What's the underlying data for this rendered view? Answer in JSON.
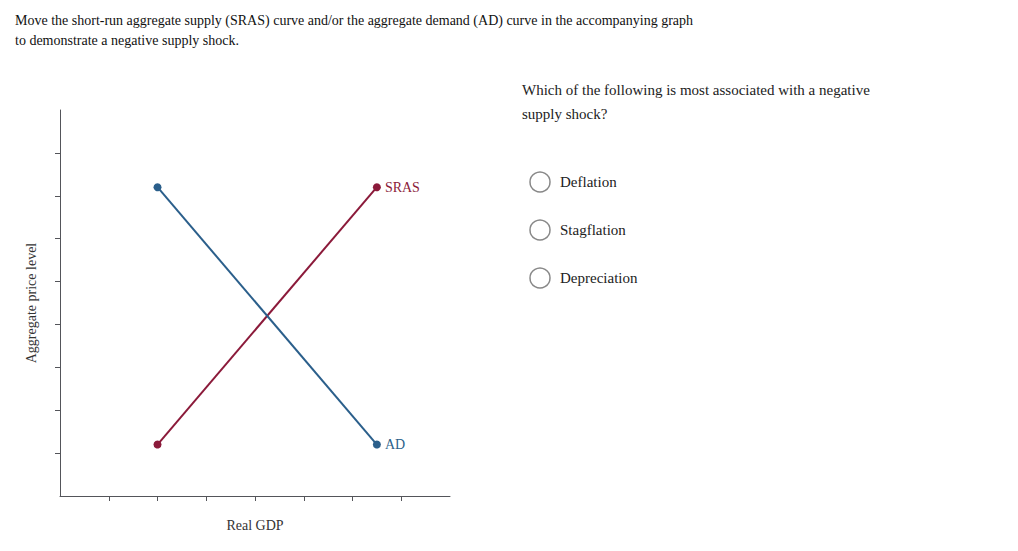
{
  "chart_data": {
    "type": "line",
    "title": "Move the short-run aggregate supply (SRAS) curve and/or the aggregate demand (AD) curve in the accompanying graph",
    "subtitle": "to demonstrate a negative supply shock.",
    "x_label": "Real GDP",
    "y_label": "Aggregate price level",
    "x": [
      2.0,
      6.5
    ],
    "series": [
      {
        "name": "SRAS",
        "color": "#8B1A3A",
        "marker": "circle",
        "values": [
          1.2,
          7.2
        ]
      },
      {
        "name": "AD",
        "color": "#2B5F8B",
        "marker": "circle",
        "values": [
          7.2,
          1.2
        ]
      }
    ],
    "xlim": [
      0,
      8
    ],
    "ylim": [
      0,
      9
    ],
    "xticks": [
      1,
      2,
      3,
      4,
      5,
      6,
      7
    ],
    "yticks": [
      1,
      2,
      3,
      4,
      5,
      6,
      7,
      8
    ],
    "tick_labels": false,
    "grid": false,
    "annotations": [
      {
        "text": "Which of the following is most associated with a negative"
      },
      {
        "text": "supply shock?"
      },
      {
        "text": "Deflation",
        "marker": "circle"
      },
      {
        "text": "Stagflation",
        "marker": "circle"
      },
      {
        "text": "Depreciation",
        "marker": "circle"
      }
    ]
  }
}
